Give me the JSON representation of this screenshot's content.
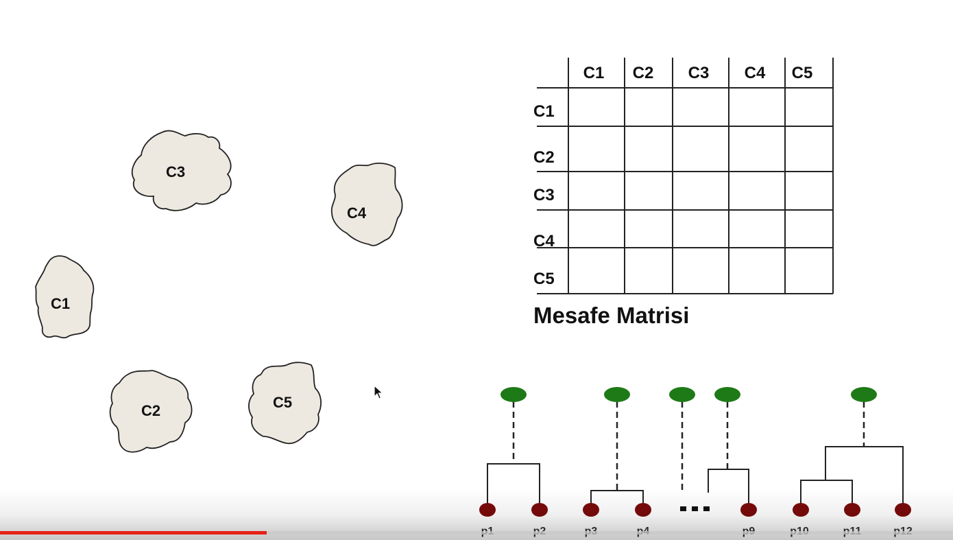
{
  "clusters": {
    "c1": "C1",
    "c2": "C2",
    "c3": "C3",
    "c4": "C4",
    "c5": "C5"
  },
  "matrix": {
    "column_headers": [
      "C1",
      "C2",
      "C3",
      "C4",
      "C5"
    ],
    "row_headers": [
      "C1",
      "C2",
      "C3",
      "C4",
      "C5"
    ],
    "title": "Mesafe Matrisi"
  },
  "dendrogram": {
    "leaves": [
      "p1",
      "p2",
      "p3",
      "p4",
      "p9",
      "p10",
      "p11",
      "p12"
    ],
    "ellipsis": "..."
  },
  "colors": {
    "root_node": "#1e7a17",
    "leaf_node": "#7a0a0a",
    "cluster_fill": "#ede9e1",
    "progress": "#e62117"
  },
  "video": {
    "progress_fraction": 0.28
  }
}
